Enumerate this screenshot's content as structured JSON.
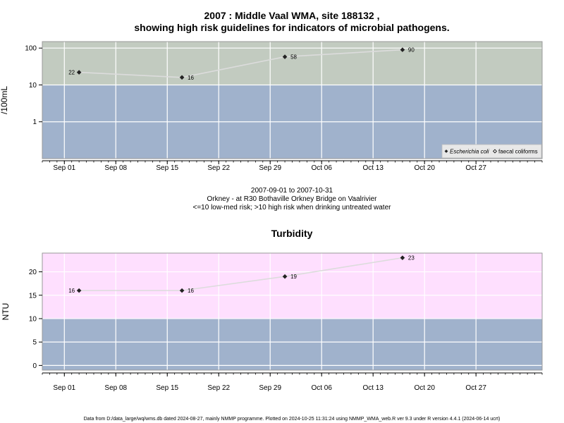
{
  "colors": {
    "high_risk_band": "#c2cbc0",
    "low_risk_band": "#a0b2cc",
    "turbidity_high_band": "#fedffe",
    "grid": "#ffffff",
    "line": "#dcdcdc",
    "point": "#222222",
    "frame": "#9a9a9a"
  },
  "period_text": "2007-09-01 to 2007-10-31",
  "site_text": "Orkney - at R30 Bothaville Orkney Bridge on Vaalrivier",
  "guideline_text": "<=10 low-med risk; >10 high risk when drinking untreated water",
  "footer": "Data from D:/data_large/wq/wms.db dated 2024-08-27, mainly NMMP programme. Plotted on 2024-10-25 11:31:24 using NMMP_WMA_web.R ver 9.3 under R version 4.4.1 (2024-06-14 ucrt)",
  "chart_data": [
    {
      "type": "scatter",
      "title_line1": "2007 : Middle Vaal WMA, site 188132 ,",
      "title_line2": "showing high risk guidelines for indicators of microbial pathogens.",
      "ylabel": "/100mL",
      "yscale": "log",
      "ylim": [
        0.1,
        150
      ],
      "yticks": [
        1,
        10,
        100
      ],
      "ytick_labels": [
        "1",
        "10",
        "100"
      ],
      "xlim": [
        "2007-08-29",
        "2007-11-05"
      ],
      "xticks": [
        "2007-09-01",
        "2007-09-08",
        "2007-09-15",
        "2007-09-22",
        "2007-09-29",
        "2007-10-06",
        "2007-10-13",
        "2007-10-20",
        "2007-10-27"
      ],
      "xtick_labels": [
        "Sep 01",
        "Sep 08",
        "Sep 15",
        "Sep 22",
        "Sep 29",
        "Oct 06",
        "Oct 13",
        "Oct 20",
        "Oct 27"
      ],
      "threshold": 10,
      "grid": true,
      "series": [
        {
          "name": "Escherichia coli",
          "marker": "filled-diamond",
          "x": [
            "2007-09-03",
            "2007-09-17",
            "2007-10-01",
            "2007-10-17"
          ],
          "y": [
            22,
            16,
            58,
            90
          ],
          "labels": [
            "22",
            "16",
            "58",
            "90"
          ],
          "label_side": [
            "left",
            "right",
            "right",
            "right"
          ]
        }
      ],
      "legend": {
        "placement": "bottom-right",
        "entries": [
          {
            "name": "Escherichia coli",
            "marker": "filled-diamond",
            "italic": true
          },
          {
            "name": "faecal coliforms",
            "marker": "open-diamond",
            "italic": false
          }
        ]
      }
    },
    {
      "type": "scatter",
      "title": "Turbidity",
      "ylabel": "NTU",
      "yscale": "linear",
      "ylim": [
        -1,
        24
      ],
      "yticks": [
        0,
        5,
        10,
        15,
        20
      ],
      "ytick_labels": [
        "0",
        "5",
        "10",
        "15",
        "20"
      ],
      "xlim": [
        "2007-08-29",
        "2007-11-05"
      ],
      "xticks": [
        "2007-09-01",
        "2007-09-08",
        "2007-09-15",
        "2007-09-22",
        "2007-09-29",
        "2007-10-06",
        "2007-10-13",
        "2007-10-20",
        "2007-10-27"
      ],
      "xtick_labels": [
        "Sep 01",
        "Sep 08",
        "Sep 15",
        "Sep 22",
        "Sep 29",
        "Oct 06",
        "Oct 13",
        "Oct 20",
        "Oct 27"
      ],
      "threshold": 10,
      "grid": true,
      "series": [
        {
          "marker": "filled-diamond",
          "x": [
            "2007-09-03",
            "2007-09-17",
            "2007-10-01",
            "2007-10-17"
          ],
          "y": [
            16,
            16,
            19,
            23
          ],
          "labels": [
            "16",
            "16",
            "19",
            "23"
          ],
          "label_side": [
            "left",
            "right",
            "right",
            "right"
          ]
        }
      ]
    }
  ]
}
